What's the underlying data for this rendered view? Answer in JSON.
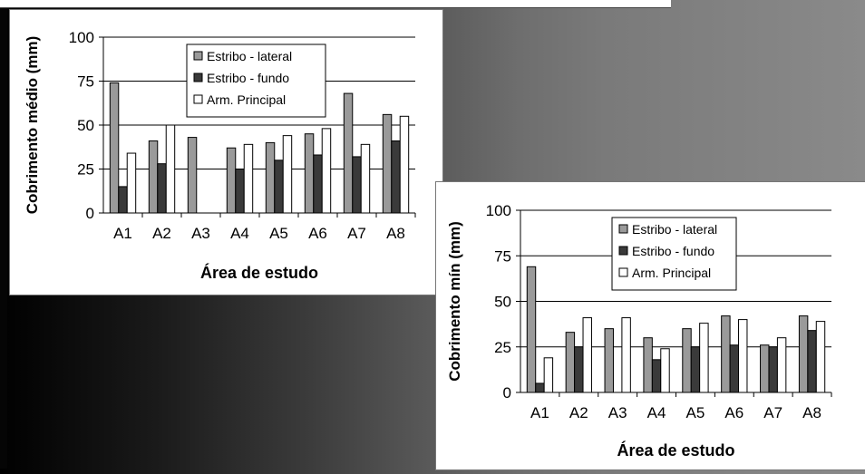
{
  "chart_data": [
    {
      "type": "bar",
      "ylabel": "Cobrimento médio (mm)",
      "xlabel": "Área de estudo",
      "categories": [
        "A1",
        "A2",
        "A3",
        "A4",
        "A5",
        "A6",
        "A7",
        "A8"
      ],
      "ylim": [
        0,
        100
      ],
      "yticks": [
        "0",
        "25",
        "50",
        "75",
        "100"
      ],
      "grid": "horizontal",
      "legend_position": "top-right",
      "series": [
        {
          "name": "Estribo - lateral",
          "color": "#9a9a9a",
          "values": [
            74,
            41,
            43,
            37,
            40,
            45,
            68,
            56
          ]
        },
        {
          "name": "Estribo - fundo",
          "color": "#3a3a3a",
          "values": [
            15,
            28,
            null,
            25,
            30,
            33,
            32,
            41
          ]
        },
        {
          "name": "Arm. Principal",
          "color": "#ffffff",
          "values": [
            34,
            50,
            null,
            39,
            44,
            48,
            39,
            55
          ]
        }
      ]
    },
    {
      "type": "bar",
      "ylabel": "Cobrimento mín (mm)",
      "xlabel": "Área de estudo",
      "categories": [
        "A1",
        "A2",
        "A3",
        "A4",
        "A5",
        "A6",
        "A7",
        "A8"
      ],
      "ylim": [
        0,
        100
      ],
      "yticks": [
        "0",
        "25",
        "50",
        "75",
        "100"
      ],
      "grid": "horizontal",
      "legend_position": "top-right",
      "series": [
        {
          "name": "Estribo - lateral",
          "color": "#9a9a9a",
          "values": [
            69,
            33,
            35,
            30,
            35,
            42,
            26,
            42
          ]
        },
        {
          "name": "Estribo - fundo",
          "color": "#3a3a3a",
          "values": [
            5,
            25,
            null,
            18,
            25,
            26,
            25,
            34
          ]
        },
        {
          "name": "Arm. Principal",
          "color": "#ffffff",
          "values": [
            19,
            41,
            41,
            24,
            38,
            40,
            30,
            39
          ]
        }
      ]
    }
  ]
}
